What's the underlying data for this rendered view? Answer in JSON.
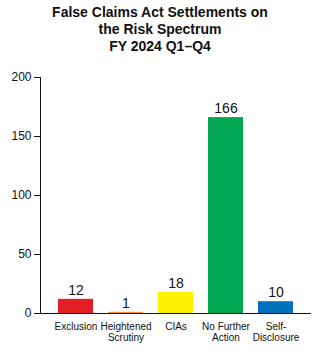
{
  "chart_data": {
    "type": "bar",
    "title": "False Claims Act Settlements on the Risk Spectrum",
    "subtitle": "FY 2024 Q1–Q4",
    "categories": [
      "Exclusion",
      "Heightened Scrutiny",
      "CIAs",
      "No Further Action",
      "Self-Disclosure"
    ],
    "values": [
      12,
      1,
      18,
      166,
      10
    ],
    "colors": [
      "#e31e24",
      "#f7941d",
      "#fff200",
      "#00a651",
      "#0072bc"
    ],
    "ylim": [
      0,
      200
    ],
    "yticks": [
      0,
      50,
      100,
      150,
      200
    ],
    "grid": false,
    "data_labels": true
  }
}
